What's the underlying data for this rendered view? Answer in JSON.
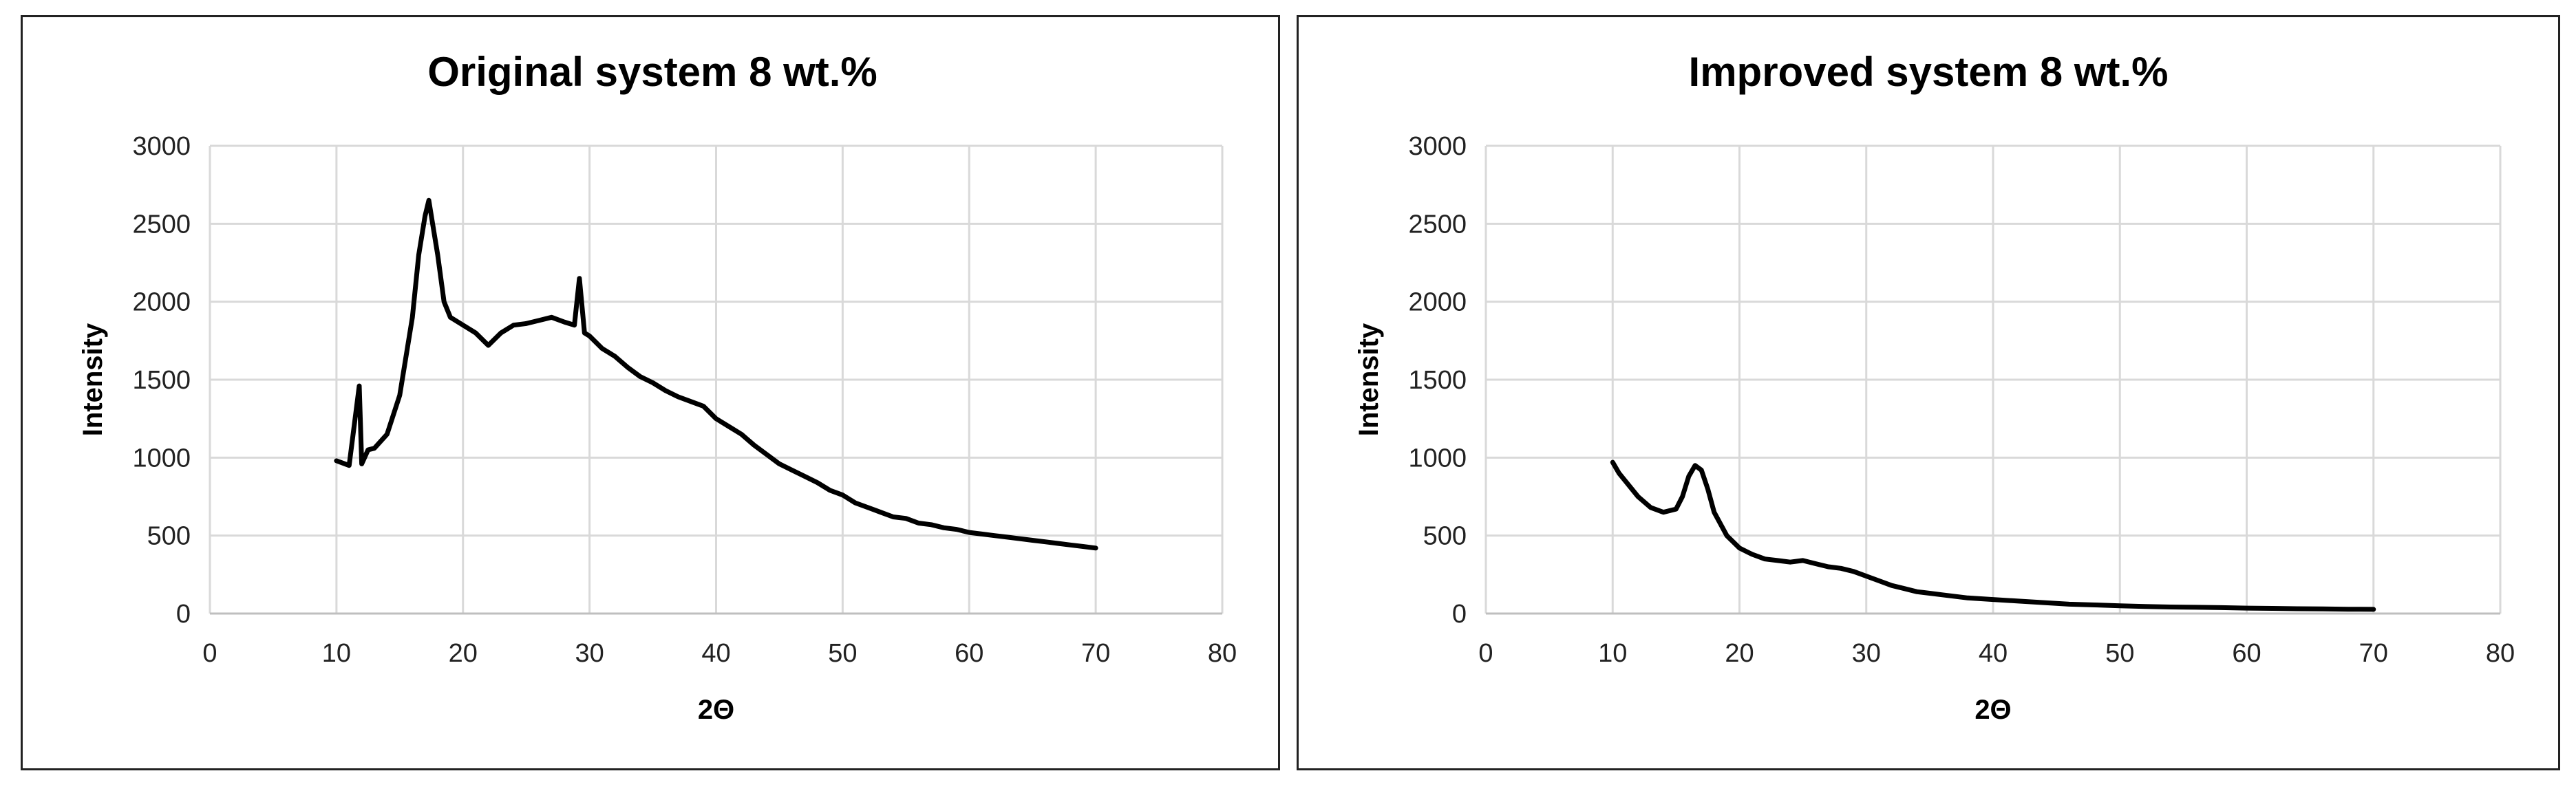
{
  "chart_data": [
    {
      "type": "line",
      "title": "Original system 8 wt.%",
      "xlabel": "2Θ",
      "ylabel": "Intensity",
      "xlim": [
        0,
        80
      ],
      "ylim": [
        0,
        3000
      ],
      "x_ticks": [
        "0",
        "10",
        "20",
        "30",
        "40",
        "50",
        "60",
        "70",
        "80"
      ],
      "y_ticks": [
        "0",
        "500",
        "1000",
        "1500",
        "2000",
        "2500",
        "3000"
      ],
      "grid": true,
      "legend": "none",
      "series": [
        {
          "color": "#000000",
          "x": [
            10,
            11,
            11.8,
            12,
            12.5,
            13,
            14,
            15,
            16,
            16.5,
            17,
            17.3,
            17.6,
            18,
            18.5,
            19,
            20,
            21,
            22,
            23,
            24,
            25,
            26,
            27,
            28,
            28.8,
            29.2,
            29.6,
            30,
            31,
            32,
            33,
            34,
            35,
            36,
            37,
            38,
            39,
            40,
            41,
            42,
            43,
            44,
            45,
            46,
            47,
            48,
            49,
            50,
            51,
            52,
            53,
            54,
            55,
            56,
            57,
            58,
            59,
            60,
            61,
            62,
            63,
            64,
            65,
            66,
            67,
            68,
            69,
            70
          ],
          "y": [
            980,
            950,
            1460,
            960,
            1050,
            1060,
            1150,
            1400,
            1900,
            2300,
            2550,
            2650,
            2500,
            2300,
            2000,
            1900,
            1850,
            1800,
            1720,
            1800,
            1850,
            1860,
            1880,
            1900,
            1870,
            1850,
            2150,
            1800,
            1780,
            1700,
            1650,
            1580,
            1520,
            1480,
            1430,
            1390,
            1360,
            1330,
            1250,
            1200,
            1150,
            1080,
            1020,
            960,
            920,
            880,
            840,
            790,
            760,
            710,
            680,
            650,
            620,
            610,
            580,
            570,
            550,
            540,
            520,
            510,
            500,
            490,
            480,
            470,
            460,
            450,
            440,
            430,
            420
          ]
        }
      ]
    },
    {
      "type": "line",
      "title": "Improved system 8 wt.%",
      "xlabel": "2Θ",
      "ylabel": "Intensity",
      "xlim": [
        0,
        80
      ],
      "ylim": [
        0,
        3000
      ],
      "x_ticks": [
        "0",
        "10",
        "20",
        "30",
        "40",
        "50",
        "60",
        "70",
        "80"
      ],
      "y_ticks": [
        "0",
        "500",
        "1000",
        "1500",
        "2000",
        "2500",
        "3000"
      ],
      "grid": true,
      "legend": "none",
      "series": [
        {
          "color": "#000000",
          "x": [
            10,
            10.5,
            11,
            12,
            13,
            14,
            15,
            15.5,
            16,
            16.5,
            17,
            17.5,
            18,
            19,
            20,
            21,
            22,
            23,
            24,
            25,
            26,
            27,
            28,
            29,
            30,
            31,
            32,
            33,
            34,
            35,
            36,
            38,
            40,
            42,
            44,
            46,
            48,
            50,
            52,
            54,
            56,
            58,
            60,
            62,
            64,
            66,
            68,
            70
          ],
          "y": [
            970,
            900,
            850,
            750,
            680,
            650,
            670,
            750,
            880,
            950,
            920,
            800,
            650,
            500,
            420,
            380,
            350,
            340,
            330,
            340,
            320,
            300,
            290,
            270,
            240,
            210,
            180,
            160,
            140,
            130,
            120,
            100,
            90,
            80,
            70,
            60,
            55,
            50,
            45,
            42,
            40,
            38,
            35,
            33,
            31,
            30,
            28,
            27
          ]
        }
      ]
    }
  ]
}
